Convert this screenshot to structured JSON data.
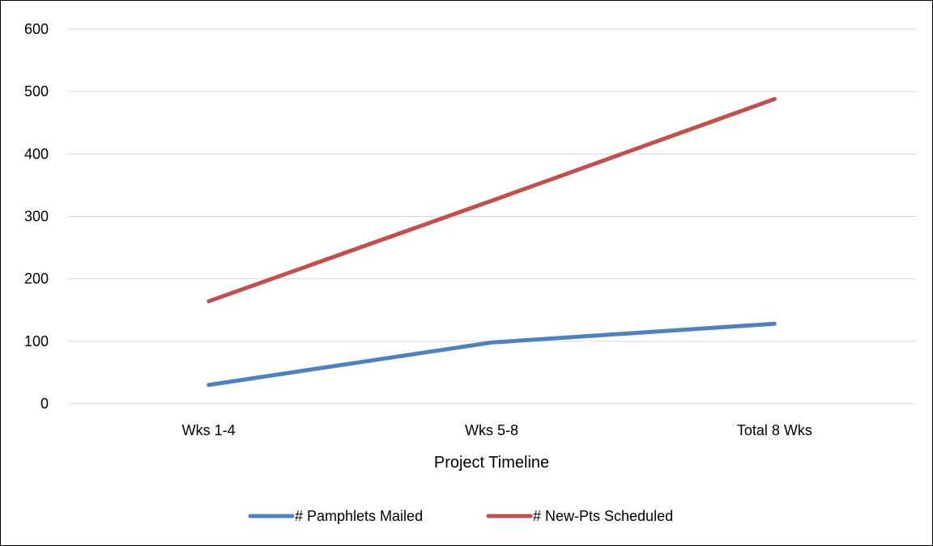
{
  "chart_data": {
    "type": "line",
    "categories": [
      "Wks 1-4",
      "Wks 5-8",
      "Total 8 Wks"
    ],
    "series": [
      {
        "name": "# Pamphlets Mailed",
        "values": [
          30,
          98,
          128
        ],
        "color": "#4f81bd"
      },
      {
        "name": "# New-Pts Scheduled",
        "values": [
          164,
          325,
          488
        ],
        "color": "#c0504d"
      }
    ],
    "xlabel": "Project Timeline",
    "ylabel": "",
    "ylim": [
      0,
      600
    ],
    "yticks": [
      "0",
      "100",
      "200",
      "300",
      "400",
      "500",
      "600"
    ],
    "grid": true,
    "legend_position": "bottom"
  }
}
